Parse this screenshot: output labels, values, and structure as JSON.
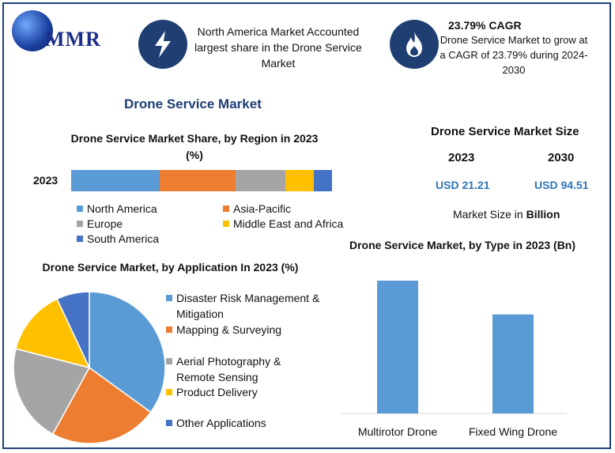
{
  "brand": {
    "logo_text": "MMR"
  },
  "header": {
    "share_text": "North America Market Accounted largest share in the Drone Service Market",
    "cagr_title": "23.79% CAGR",
    "cagr_text": "Drone Service Market to grow at a CAGR of 23.79% during 2024-2030",
    "icon_color": "#1f3f73"
  },
  "main_title": "Drone Service Market",
  "market_size": {
    "title": "Drone Service Market Size",
    "years": [
      "2023",
      "2030"
    ],
    "values": [
      "USD 21.21",
      "USD 94.51"
    ],
    "unit_prefix": "Market Size in ",
    "unit_bold": "Billion",
    "value_color": "#2e75b6"
  },
  "chart_data": [
    {
      "type": "bar",
      "orientation": "horizontal-stacked",
      "title": "Drone Service Market Share, by Region in 2023 (%)",
      "categories": [
        "2023"
      ],
      "series": [
        {
          "name": "North America",
          "values": [
            34
          ],
          "color": "#5b9bd5"
        },
        {
          "name": "Asia-Pacific",
          "values": [
            29
          ],
          "color": "#ed7d31"
        },
        {
          "name": "Europe",
          "values": [
            19
          ],
          "color": "#a5a5a5"
        },
        {
          "name": "Middle East and Africa",
          "values": [
            11
          ],
          "color": "#ffc000"
        },
        {
          "name": "South America",
          "values": [
            7
          ],
          "color": "#4472c4"
        }
      ],
      "legend": "bottom"
    },
    {
      "type": "pie",
      "title": "Drone Service Market, by Application In 2023 (%)",
      "labels": [
        "Disaster Risk Management & Mitigation",
        "Mapping & Surveying",
        "Aerial Photography & Remote Sensing",
        "Product Delivery",
        "Other Applications"
      ],
      "values": [
        35,
        23,
        21,
        14,
        7
      ],
      "colors": [
        "#5b9bd5",
        "#ed7d31",
        "#a5a5a5",
        "#ffc000",
        "#4472c4"
      ],
      "legend": "right"
    },
    {
      "type": "bar",
      "title": "Drone Service Market, by Type in 2023 (Bn)",
      "categories": [
        "Multirotor Drone",
        "Fixed Wing Drone"
      ],
      "values": [
        12.2,
        9.1
      ],
      "color": "#5b9bd5",
      "ylim": [
        0,
        12.2
      ],
      "grid": false
    }
  ]
}
